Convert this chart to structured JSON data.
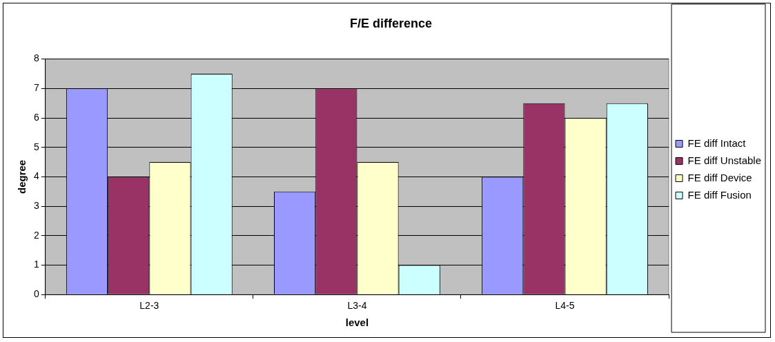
{
  "chart_data": {
    "type": "bar",
    "title": "F/E difference",
    "xlabel": "level",
    "ylabel": "degree",
    "categories": [
      "L2-3",
      "L3-4",
      "L4-5"
    ],
    "series": [
      {
        "name": "FE diff Intact",
        "color": "#9999ff",
        "values": [
          7,
          3.5,
          4
        ]
      },
      {
        "name": "FE diff Unstable",
        "color": "#993366",
        "values": [
          4,
          7,
          6.5
        ]
      },
      {
        "name": "FE diff Device",
        "color": "#ffffcc",
        "values": [
          4.5,
          4.5,
          6
        ]
      },
      {
        "name": "FE diff Fusion",
        "color": "#ccffff",
        "values": [
          7.5,
          1,
          6.5
        ]
      }
    ],
    "ylim": [
      0,
      8
    ],
    "yticks": [
      0,
      1,
      2,
      3,
      4,
      5,
      6,
      7,
      8
    ],
    "grid": "y",
    "legend": "right"
  }
}
